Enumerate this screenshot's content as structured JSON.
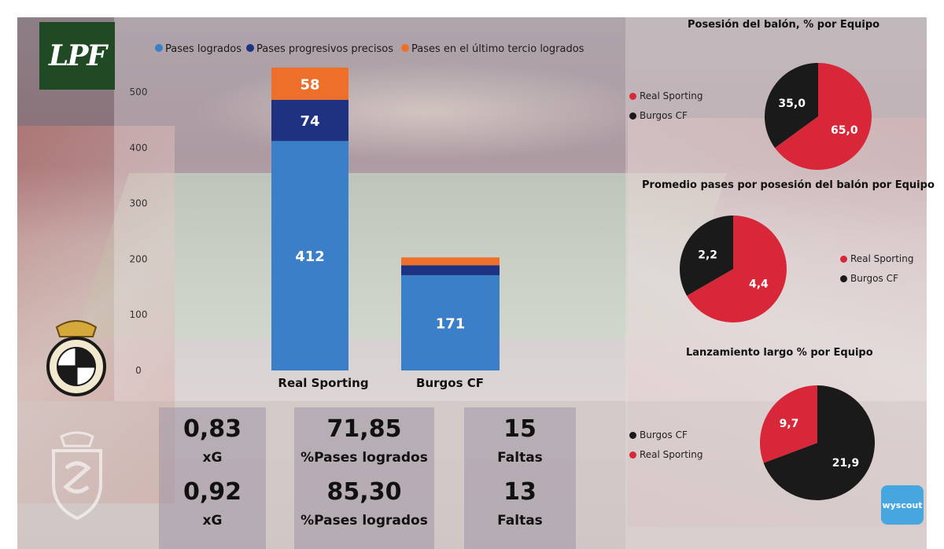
{
  "logo_text": "LPF",
  "brand_logo": "wyscout",
  "colors": {
    "pases_logrados": "#3a7fc8",
    "pases_progresivos": "#1f3282",
    "ultimo_tercio": "#ee6f2a",
    "real_sporting": "#d9273a",
    "burgos": "#1a1a1a"
  },
  "chart_data": [
    {
      "type": "bar",
      "stacked": true,
      "categories": [
        "Real Sporting",
        "Burgos CF"
      ],
      "series": [
        {
          "name": "Pases logrados",
          "values": [
            412,
            171
          ],
          "labels": [
            "412",
            "171"
          ]
        },
        {
          "name": "Pases progresivos precisos",
          "values": [
            74,
            18
          ],
          "labels": [
            "74",
            ""
          ]
        },
        {
          "name": "Pases en el último tercio logrados",
          "values": [
            58,
            14
          ],
          "labels": [
            "58",
            ""
          ]
        }
      ],
      "yticks": [
        0,
        100,
        200,
        300,
        400,
        500
      ],
      "ylim": [
        0,
        550
      ],
      "legend": "top"
    },
    {
      "type": "pie",
      "title": "Posesión del balón, % por Equipo",
      "slices": [
        {
          "name": "Real Sporting",
          "value": 65.0,
          "label": "65,0"
        },
        {
          "name": "Burgos CF",
          "value": 35.0,
          "label": "35,0"
        }
      ],
      "legend": "left"
    },
    {
      "type": "pie",
      "title": "Promedio pases por posesión del balón por Equipo",
      "slices": [
        {
          "name": "Real Sporting",
          "value": 4.4,
          "label": "4,4"
        },
        {
          "name": "Burgos CF",
          "value": 2.2,
          "label": "2,2"
        }
      ],
      "legend": "right"
    },
    {
      "type": "pie",
      "title": "Lanzamiento largo % por Equipo",
      "slices": [
        {
          "name": "Burgos CF",
          "value": 21.9,
          "label": "21,9"
        },
        {
          "name": "Real Sporting",
          "value": 9.7,
          "label": "9,7"
        }
      ],
      "legend": "left"
    }
  ],
  "stats": [
    [
      {
        "value": "0,83",
        "label": "xG"
      },
      {
        "value": "71,85",
        "label": "%Pases logrados"
      },
      {
        "value": "15",
        "label": "Faltas"
      }
    ],
    [
      {
        "value": "0,92",
        "label": "xG"
      },
      {
        "value": "85,30",
        "label": "%Pases logrados"
      },
      {
        "value": "13",
        "label": "Faltas"
      }
    ]
  ]
}
